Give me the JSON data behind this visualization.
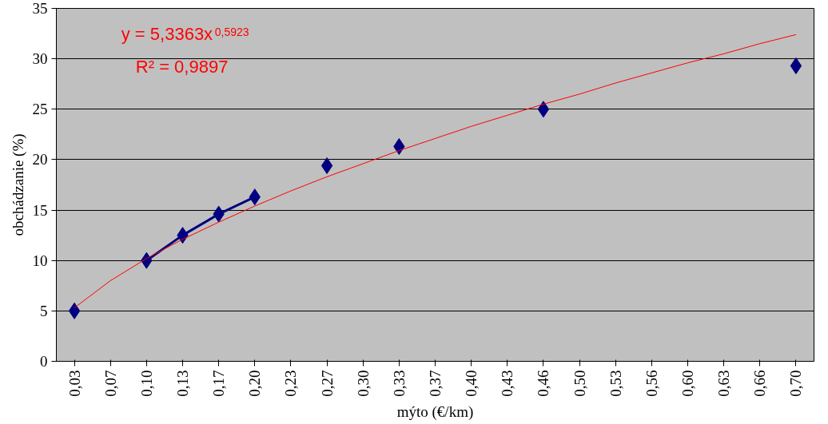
{
  "chart_data": {
    "type": "line",
    "xlabel": "mýto (€/km)",
    "ylabel": "obchádzanie (%)",
    "categories": [
      "0,03",
      "0,07",
      "0,10",
      "0,13",
      "0,17",
      "0,20",
      "0,23",
      "0,27",
      "0,30",
      "0,33",
      "0,37",
      "0,40",
      "0,43",
      "0,46",
      "0,50",
      "0,53",
      "0,56",
      "0,60",
      "0,63",
      "0,66",
      "0,70"
    ],
    "series": [
      {
        "color": "#000080",
        "marker": "diamond",
        "values": [
          5,
          null,
          10,
          12.5,
          14.6,
          16.3,
          null,
          19.4,
          null,
          21.3,
          null,
          null,
          null,
          25.0,
          null,
          null,
          null,
          null,
          null,
          null,
          29.3
        ]
      },
      {
        "color": "#ff0000",
        "marker": "none",
        "values": [
          5.3,
          8.0,
          10.2,
          12.1,
          13.8,
          15.4,
          16.9,
          18.3,
          19.6,
          20.9,
          22.1,
          23.3,
          24.4,
          25.5,
          26.5,
          27.6,
          28.6,
          29.6,
          30.5,
          31.5,
          32.4
        ]
      }
    ],
    "ylim": [
      0,
      35
    ],
    "yticks": [
      0,
      5,
      10,
      15,
      20,
      25,
      30,
      35
    ],
    "grid": "y",
    "annotations": [
      "y = 5,3363x$^{0,5923}$",
      "R² = 0,9897"
    ]
  }
}
